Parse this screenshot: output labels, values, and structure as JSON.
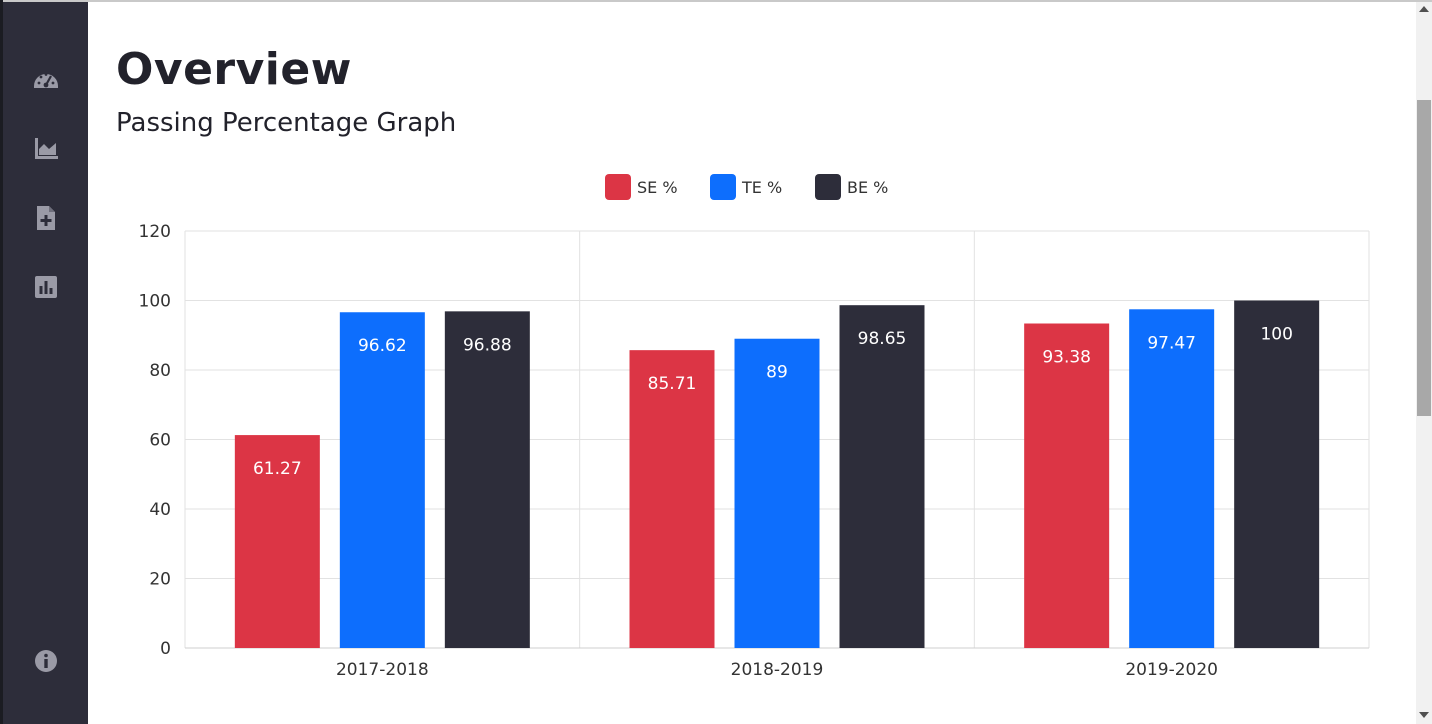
{
  "page": {
    "title": "Overview",
    "subtitle": "Passing Percentage Graph"
  },
  "sidebar": {
    "items": [
      {
        "icon": "dashboard-gauge-icon"
      },
      {
        "icon": "area-chart-icon"
      },
      {
        "icon": "file-add-icon"
      },
      {
        "icon": "bar-chart-icon"
      }
    ],
    "bottom": {
      "icon": "info-icon"
    }
  },
  "colors": {
    "sidebar_bg": "#2d2d3a",
    "se": "#dc3545",
    "te": "#0d6efd",
    "be": "#2d2d3a"
  },
  "chart_data": {
    "type": "bar",
    "categories": [
      "2017-2018",
      "2018-2019",
      "2019-2020"
    ],
    "series": [
      {
        "name": "SE %",
        "color": "#dc3545",
        "values": [
          61.27,
          85.71,
          93.38
        ]
      },
      {
        "name": "TE %",
        "color": "#0d6efd",
        "values": [
          96.62,
          89,
          97.47
        ]
      },
      {
        "name": "BE %",
        "color": "#2d2d3a",
        "values": [
          96.88,
          98.65,
          100
        ]
      }
    ],
    "ylim": [
      0,
      120
    ],
    "yticks": [
      0,
      20,
      40,
      60,
      80,
      100,
      120
    ],
    "grid": true,
    "legend": "top-center",
    "data_labels": true
  }
}
